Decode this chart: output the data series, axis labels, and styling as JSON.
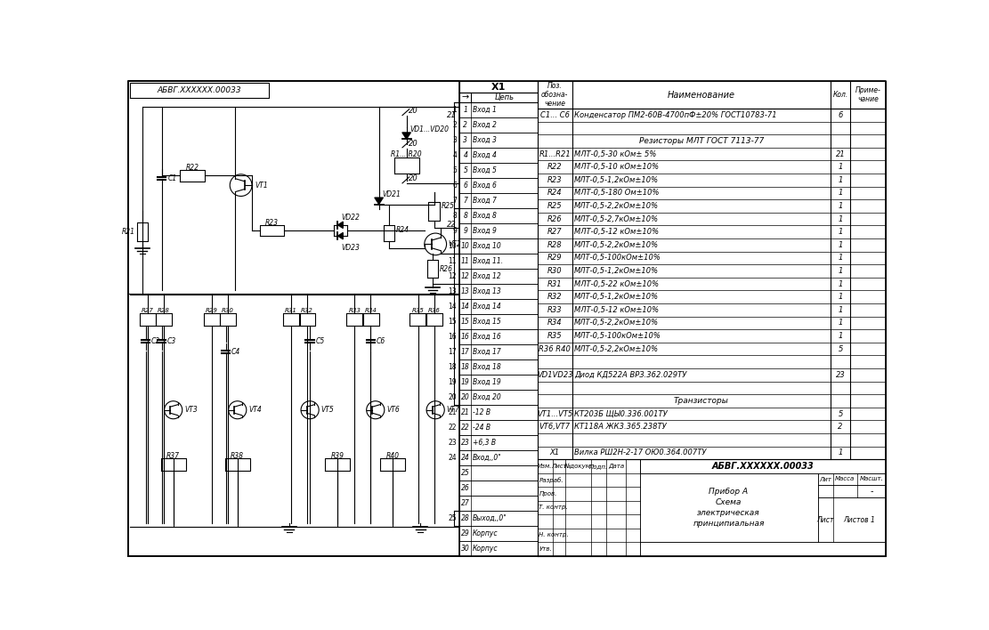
{
  "bg_color": "#f0f0f0",
  "black": "#000000",
  "white": "#ffffff",
  "bom_rows": [
    [
      "C1... C6",
      "Конденсатор ПМ2-60В-4700пФ±20% ГОСТ10783-71",
      "6",
      ""
    ],
    [
      "",
      "",
      "",
      ""
    ],
    [
      "",
      "Резисторы МЛТ ГОСТ 7113-77",
      "",
      ""
    ],
    [
      "R1...R21",
      "МЛТ-0,5-30 кОм± 5%",
      "21",
      ""
    ],
    [
      "R22",
      "МЛТ-0,5-10 кОм±10%",
      "1",
      ""
    ],
    [
      "R23",
      "МЛТ-0,5-1,2кОм±10%",
      "1",
      ""
    ],
    [
      "R24",
      "МЛТ-0,5-180 Ом±10%",
      "1",
      ""
    ],
    [
      "R25",
      "МЛТ-0,5-2,2кОм±10%",
      "1",
      ""
    ],
    [
      "R26",
      "МЛТ-0,5-2,7кОм±10%",
      "1",
      ""
    ],
    [
      "R27",
      "МЛТ-0,5-12 кОм±10%",
      "1",
      ""
    ],
    [
      "R28",
      "МЛТ-0,5-2,2кОм±10%",
      "1",
      ""
    ],
    [
      "R29",
      "МЛТ-0,5-100кОм±10%",
      "1",
      ""
    ],
    [
      "R30",
      "МЛТ-0,5-1,2кОм±10%",
      "1",
      ""
    ],
    [
      "R31",
      "МЛТ-0,5-22 кОм±10%",
      "1",
      ""
    ],
    [
      "R32",
      "МЛТ-0,5-1,2кОм±10%",
      "1",
      ""
    ],
    [
      "R33",
      "МЛТ-0,5-12 кОм±10%",
      "1",
      ""
    ],
    [
      "R34",
      "МЛТ-0,5-2,2кОм±10%",
      "1",
      ""
    ],
    [
      "R35",
      "МЛТ-0,5-100кОм±10%",
      "1",
      ""
    ],
    [
      "R36 R40",
      "МЛТ-0,5-2,2кОм±10%",
      "5",
      ""
    ],
    [
      "",
      "",
      "",
      ""
    ],
    [
      "VD1VD23",
      "Диод КД522А ВРЗ.362.029ТУ",
      "23",
      ""
    ],
    [
      "",
      "",
      "",
      ""
    ],
    [
      "",
      "Транзисторы",
      "",
      ""
    ],
    [
      "VT1...VT5",
      "КТ203Б ЩЫ0.336.001ТУ",
      "5",
      ""
    ],
    [
      "VT6,VT7",
      "КТ118А ЖК3.365.238ТУ",
      "2",
      ""
    ],
    [
      "",
      "",
      "",
      ""
    ],
    [
      "X1",
      "Вилка РШ2Н-2-17 ОЮ0.364.007ТУ",
      "1",
      ""
    ]
  ],
  "connector_rows": [
    [
      "1",
      "Вход 1"
    ],
    [
      "2",
      "Вход 2"
    ],
    [
      "3",
      "Вход 3"
    ],
    [
      "4",
      "Вход 4"
    ],
    [
      "5",
      "Вход 5"
    ],
    [
      "6",
      "Вход 6"
    ],
    [
      "7",
      "Вход 7"
    ],
    [
      "8",
      "Вход 8"
    ],
    [
      "9",
      "Вход 9"
    ],
    [
      "10",
      "Вход 10"
    ],
    [
      "11",
      "Вход 11."
    ],
    [
      "12",
      "Вход 12"
    ],
    [
      "13",
      "Вход 13"
    ],
    [
      "14",
      "Вход 14"
    ],
    [
      "15",
      "Вход 15"
    ],
    [
      "16",
      "Вход 16"
    ],
    [
      "17",
      "Вход 17"
    ],
    [
      "18",
      "Вход 18"
    ],
    [
      "19",
      "Вход 19"
    ],
    [
      "20",
      "Вход 20"
    ],
    [
      "21",
      "-12 В"
    ],
    [
      "22",
      "-24 В"
    ],
    [
      "23",
      "+6,3 В"
    ],
    [
      "24",
      "Вход,,0\""
    ],
    [
      "25",
      ""
    ],
    [
      "26",
      ""
    ],
    [
      "27",
      ""
    ],
    [
      "28",
      "Выход,,0\""
    ],
    [
      "29",
      "Корпус"
    ],
    [
      "30",
      "Корпус"
    ]
  ],
  "stamp_title": "АБВГ.XXXXXX.00033",
  "stamp_name": "Прибор А\nСхема\nэлектрическая\nпринципиальная",
  "stamp_left_labels": [
    "Изм.",
    "Лист",
    "№докум.",
    "Подп.",
    "Дата"
  ],
  "stamp_person_labels": [
    "Разраб.",
    "Пров.",
    "Т. контр.",
    "",
    "Н. контр.",
    "Утв."
  ],
  "title_box_text": "АБВГ.XXXXXX.00033"
}
